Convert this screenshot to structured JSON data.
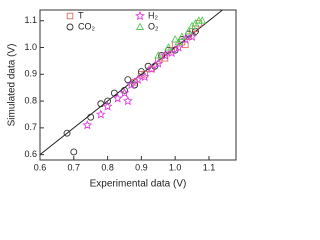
{
  "chart_data": {
    "type": "scatter",
    "x_label": "Experimental data (V)",
    "y_label": "Simulated data (V)",
    "xlim": [
      0.6,
      1.18
    ],
    "ylim": [
      0.58,
      1.14
    ],
    "xticks": [
      0.6,
      0.7,
      0.8,
      0.9,
      {
        "value": 1,
        "label": "1.0"
      },
      1.1
    ],
    "yticks": [
      0.6,
      0.7,
      0.8,
      0.9,
      {
        "value": 1,
        "label": "1.0"
      },
      1.1
    ],
    "grid": false,
    "legend": "upper left",
    "diagonal": true,
    "series": [
      {
        "name": "T",
        "color": "#e06a6a",
        "marker": "square",
        "x": [
          0.88,
          0.9,
          0.93,
          0.95,
          0.97,
          0.99,
          1.0,
          1.02,
          1.04,
          1.05,
          1.06,
          1.07,
          1.03,
          0.96,
          0.91
        ],
        "values": [
          0.87,
          0.9,
          0.92,
          0.95,
          0.96,
          0.99,
          1.01,
          1.02,
          1.04,
          1.06,
          1.07,
          1.09,
          1.01,
          0.97,
          0.9
        ]
      },
      {
        "name": "CO₂",
        "color": "#333333",
        "marker": "circle",
        "x": [
          0.68,
          0.7,
          0.75,
          0.78,
          0.8,
          0.82,
          0.85,
          0.86,
          0.88,
          0.9,
          0.92,
          0.94,
          0.96,
          0.98,
          1.0,
          1.02,
          1.04,
          1.06
        ],
        "values": [
          0.68,
          0.61,
          0.74,
          0.79,
          0.8,
          0.83,
          0.84,
          0.88,
          0.86,
          0.91,
          0.93,
          0.93,
          0.97,
          0.99,
          0.99,
          1.03,
          1.05,
          1.06
        ]
      },
      {
        "name": "H₂",
        "color": "#e040e0",
        "marker": "star",
        "x": [
          0.74,
          0.78,
          0.8,
          0.83,
          0.85,
          0.87,
          0.89,
          0.91,
          0.93,
          0.95,
          0.97,
          0.99,
          1.01,
          1.03,
          1.05,
          0.86
        ],
        "values": [
          0.71,
          0.75,
          0.78,
          0.81,
          0.83,
          0.86,
          0.88,
          0.89,
          0.92,
          0.94,
          0.97,
          0.98,
          1.0,
          1.03,
          1.04,
          0.8
        ]
      },
      {
        "name": "O₂",
        "color": "#55cc55",
        "marker": "triangle",
        "x": [
          0.95,
          0.98,
          1.0,
          1.02,
          1.04,
          1.05,
          1.06,
          1.07,
          1.08,
          1.01
        ],
        "values": [
          0.97,
          1.0,
          1.03,
          1.04,
          1.06,
          1.08,
          1.09,
          1.1,
          1.1,
          1.02
        ]
      }
    ]
  }
}
